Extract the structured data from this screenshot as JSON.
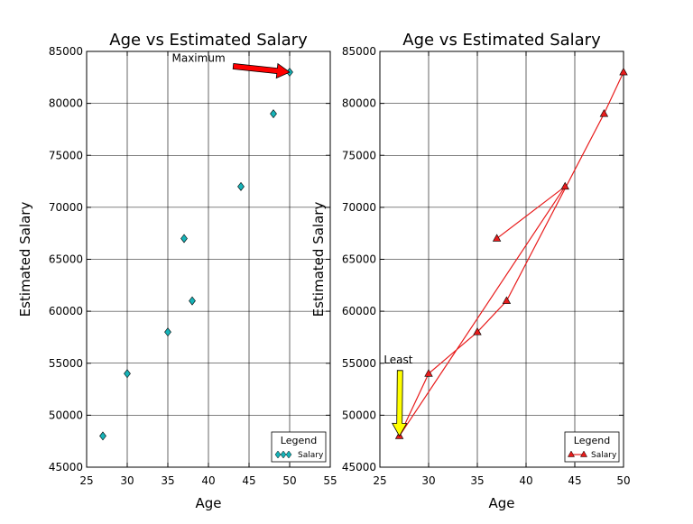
{
  "chart_data": [
    {
      "type": "scatter",
      "title": "Age vs Estimated Salary",
      "xlabel": "Age",
      "ylabel": "Estimated Salary",
      "xlim": [
        25,
        55
      ],
      "ylim": [
        45000,
        85000
      ],
      "xticks": [
        "25",
        "30",
        "35",
        "40",
        "45",
        "50",
        "55"
      ],
      "yticks": [
        "45000",
        "50000",
        "55000",
        "60000",
        "65000",
        "70000",
        "75000",
        "80000",
        "85000"
      ],
      "grid": true,
      "series": [
        {
          "name": "Salary",
          "marker": "diamond",
          "color": "#17b3b8",
          "x": [
            27,
            30,
            35,
            37,
            38,
            44,
            48,
            50
          ],
          "y": [
            48000,
            54000,
            58000,
            67000,
            61000,
            72000,
            79000,
            83000
          ]
        }
      ],
      "legend": {
        "title": "Legend",
        "placement": "lower-right"
      },
      "annotation": {
        "text": "Maximum",
        "x": 50,
        "y": 83000,
        "text_x": 35.5,
        "text_y": 84000,
        "arrow_color": "#ff0000"
      }
    },
    {
      "type": "line",
      "title": "Age vs Estimated Salary",
      "xlabel": "Age",
      "ylabel": "Estimated Salary",
      "xlim": [
        25,
        50
      ],
      "ylim": [
        45000,
        85000
      ],
      "xticks": [
        "25",
        "30",
        "35",
        "40",
        "45",
        "50"
      ],
      "yticks": [
        "45000",
        "50000",
        "55000",
        "60000",
        "65000",
        "70000",
        "75000",
        "80000",
        "85000"
      ],
      "grid": true,
      "series": [
        {
          "name": "Salary",
          "marker": "triangle",
          "color": "#e81c1c",
          "x": [
            37,
            44,
            27,
            30,
            35,
            38,
            48,
            50
          ],
          "y": [
            67000,
            72000,
            48000,
            54000,
            58000,
            61000,
            79000,
            83000
          ]
        }
      ],
      "legend": {
        "title": "Legend",
        "placement": "lower-right"
      },
      "annotation": {
        "text": "Least",
        "x": 27,
        "y": 48000,
        "text_x": 25.4,
        "text_y": 55000,
        "arrow_color": "#ffff00"
      }
    }
  ]
}
